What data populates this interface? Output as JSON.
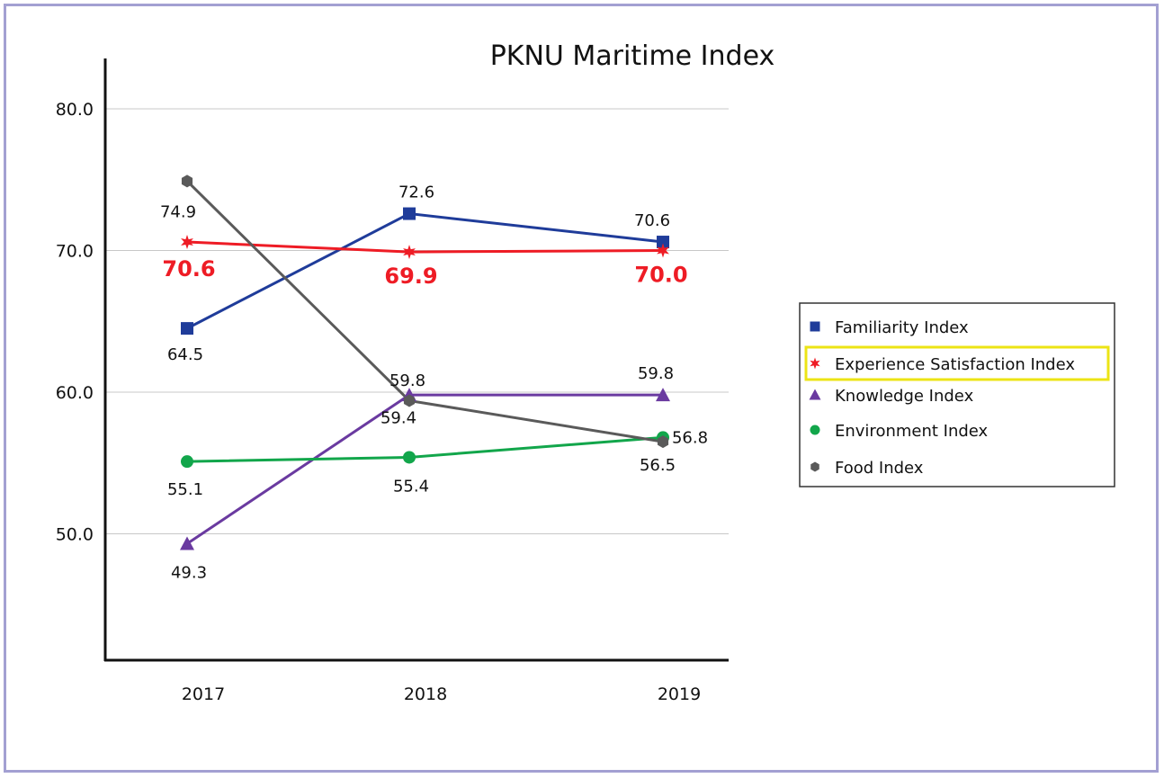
{
  "chart_data": {
    "type": "line",
    "title": "PKNU Maritime Index",
    "categories": [
      "2017",
      "2018",
      "2019"
    ],
    "ylim": [
      42,
      84
    ],
    "y_ticks": [
      50,
      60,
      70,
      80
    ],
    "y_tick_labels": [
      "50.0",
      "60.0",
      "70.0",
      "80.0"
    ],
    "grid": true,
    "legend_position": "right",
    "highlighted_series": "Experience Satisfaction Index",
    "series": [
      {
        "name": "Familiarity Index",
        "values": [
          64.5,
          72.6,
          70.6
        ],
        "labels": [
          "64.5",
          "72.6",
          "70.6"
        ],
        "color": "#1f3c9a",
        "marker": "square"
      },
      {
        "name": "Experience Satisfaction Index",
        "values": [
          70.6,
          69.9,
          70.0
        ],
        "labels": [
          "70.6",
          "69.9",
          "70.0"
        ],
        "color": "#ee1c25",
        "marker": "star"
      },
      {
        "name": "Knowledge Index",
        "values": [
          49.3,
          59.8,
          59.8
        ],
        "labels": [
          "49.3",
          "59.8",
          "59.8"
        ],
        "color": "#6a3aa0",
        "marker": "triangle"
      },
      {
        "name": "Environment Index",
        "values": [
          55.1,
          55.4,
          56.8
        ],
        "labels": [
          "55.1",
          "55.4",
          "56.8"
        ],
        "color": "#12a64b",
        "marker": "circle"
      },
      {
        "name": "Food Index",
        "values": [
          74.9,
          59.4,
          56.5
        ],
        "labels": [
          "74.9",
          "59.4",
          "56.5"
        ],
        "color": "#5a5a5a",
        "marker": "hexagon"
      }
    ]
  }
}
